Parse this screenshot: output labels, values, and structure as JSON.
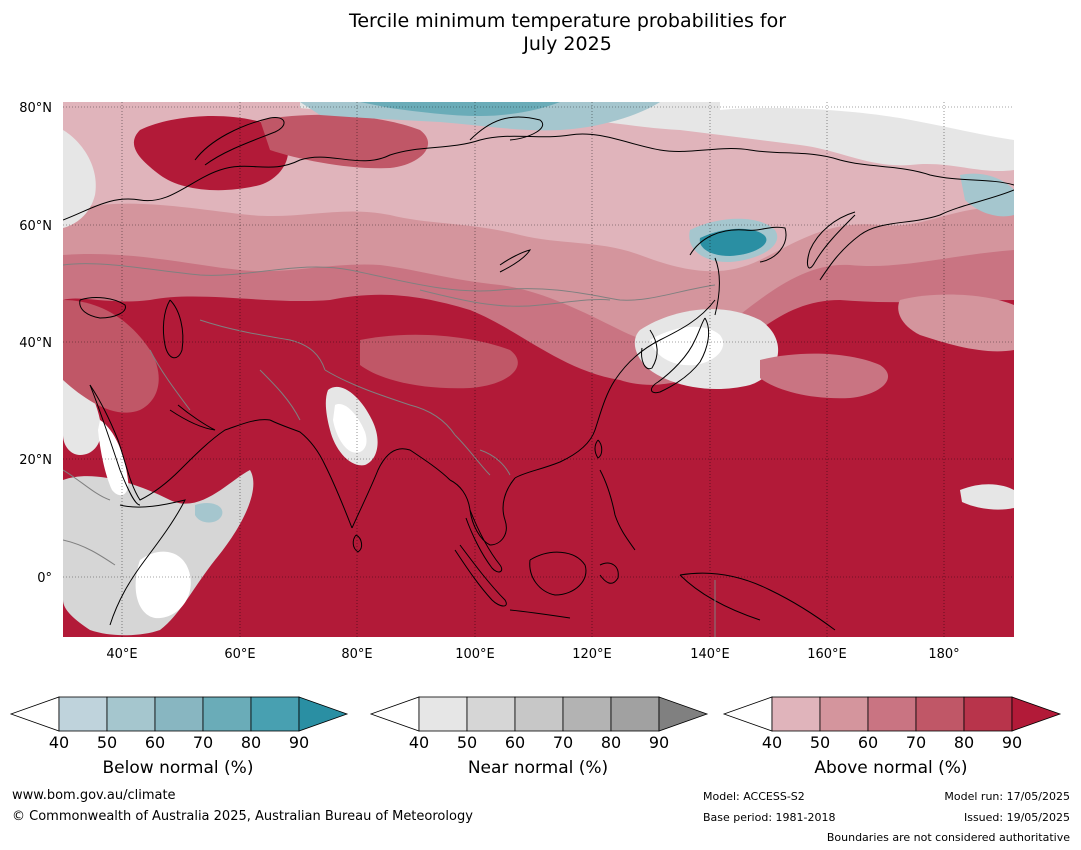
{
  "title": {
    "line1": "Tercile minimum temperature probabilities for",
    "line2": "July 2025"
  },
  "axes": {
    "lat_labels": [
      "80°N",
      "60°N",
      "40°N",
      "20°N",
      "0°"
    ],
    "lon_labels": [
      "40°E",
      "60°E",
      "80°E",
      "100°E",
      "120°E",
      "140°E",
      "160°E",
      "180°"
    ]
  },
  "colorbars": {
    "ticks": [
      "40",
      "50",
      "60",
      "70",
      "80",
      "90"
    ],
    "below": {
      "title": "Below normal (%)",
      "colors": [
        "#ffffff",
        "#bfd3dc",
        "#a5c6ce",
        "#88b6c1",
        "#6aacb8",
        "#48a0b1",
        "#2a8fa3"
      ]
    },
    "near": {
      "title": "Near normal (%)",
      "colors": [
        "#ffffff",
        "#e6e6e6",
        "#d6d6d6",
        "#c7c7c7",
        "#b3b3b3",
        "#a1a1a1",
        "#808080"
      ]
    },
    "above": {
      "title": "Above normal (%)",
      "colors": [
        "#ffffff",
        "#e0b4bb",
        "#d4959d",
        "#c97482",
        "#c05767",
        "#b8344b",
        "#b21a38"
      ]
    }
  },
  "footer": {
    "website": "www.bom.gov.au/climate",
    "copyright": "© Commonwealth of Australia 2025, Australian Bureau of Meteorology",
    "model": "Model: ACCESS-S2",
    "base_period": "Base period: 1981-2018",
    "model_run": "Model run: 17/05/2025",
    "issued": "Issued: 19/05/2025",
    "disclaimer": "Boundaries are not considered authoritative"
  },
  "map_colors": {
    "dominant_above": "#b21a38",
    "above_70": "#c05767",
    "above_60": "#c97482",
    "above_50": "#d4959d",
    "above_40": "#e0b4bb",
    "near_light": "#e6e6e6",
    "near_mid": "#c7c7c7",
    "below_light": "#a5c6ce",
    "below_mid": "#6aacb8",
    "below_dark": "#2a8fa3",
    "coastline": "#000000",
    "border": "#808080"
  }
}
